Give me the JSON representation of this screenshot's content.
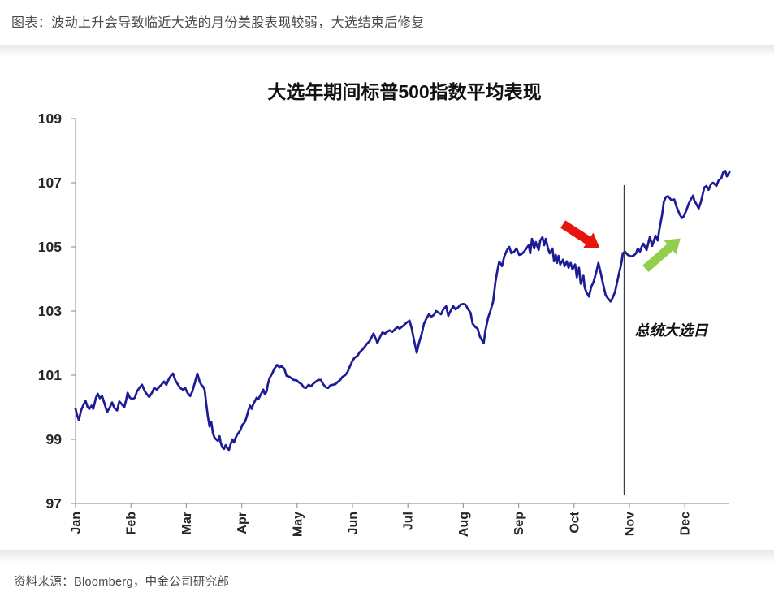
{
  "page": {
    "caption": "图表：波动上升会导致临近大选的月份美股表现较弱，大选结束后修复",
    "source": "资料来源：Bloomberg，中金公司研究部"
  },
  "chart_data": {
    "type": "line",
    "title": "大选年期间标普500指数平均表现",
    "xlabel": "",
    "ylabel": "",
    "ylim": [
      97,
      109
    ],
    "yticks": [
      97,
      99,
      101,
      103,
      105,
      107,
      109
    ],
    "xtick_labels": [
      "Jan",
      "Feb",
      "Mar",
      "Apr",
      "May",
      "Jun",
      "Jul",
      "Aug",
      "Sep",
      "Oct",
      "Nov",
      "Dec"
    ],
    "grid": false,
    "event_line": {
      "x": 9.905,
      "label": "总统大选日"
    },
    "arrows": [
      {
        "name": "pre-election-pullback",
        "color": "#e8150d",
        "x": 8.8,
        "y": 105.71,
        "angle": 33,
        "length": 54
      },
      {
        "name": "post-election-recovery",
        "color": "#90ce4c",
        "x": 10.29,
        "y": 104.32,
        "angle": -41,
        "length": 57
      }
    ],
    "series": [
      {
        "name": "大选年标普500指数平均表现",
        "color": "#1e1b96",
        "points": [
          [
            0,
            99.95
          ],
          [
            0.03,
            99.75
          ],
          [
            0.06,
            99.6
          ],
          [
            0.1,
            99.9
          ],
          [
            0.15,
            100.1
          ],
          [
            0.18,
            100.2
          ],
          [
            0.22,
            100
          ],
          [
            0.25,
            99.95
          ],
          [
            0.29,
            100.05
          ],
          [
            0.32,
            99.95
          ],
          [
            0.37,
            100.3
          ],
          [
            0.4,
            100.42
          ],
          [
            0.44,
            100.28
          ],
          [
            0.48,
            100.35
          ],
          [
            0.53,
            100.08
          ],
          [
            0.57,
            99.85
          ],
          [
            0.62,
            100
          ],
          [
            0.66,
            100.15
          ],
          [
            0.7,
            99.98
          ],
          [
            0.75,
            99.9
          ],
          [
            0.79,
            100.18
          ],
          [
            0.84,
            100.08
          ],
          [
            0.88,
            100
          ],
          [
            0.91,
            100.2
          ],
          [
            0.94,
            100.45
          ],
          [
            0.98,
            100.3
          ],
          [
            1.03,
            100.25
          ],
          [
            1.07,
            100.3
          ],
          [
            1.11,
            100.5
          ],
          [
            1.16,
            100.62
          ],
          [
            1.2,
            100.7
          ],
          [
            1.25,
            100.5
          ],
          [
            1.29,
            100.4
          ],
          [
            1.33,
            100.32
          ],
          [
            1.38,
            100.45
          ],
          [
            1.42,
            100.6
          ],
          [
            1.47,
            100.55
          ],
          [
            1.51,
            100.63
          ],
          [
            1.55,
            100.7
          ],
          [
            1.6,
            100.8
          ],
          [
            1.64,
            100.7
          ],
          [
            1.69,
            100.9
          ],
          [
            1.73,
            101
          ],
          [
            1.76,
            101.05
          ],
          [
            1.8,
            100.85
          ],
          [
            1.85,
            100.7
          ],
          [
            1.89,
            100.6
          ],
          [
            1.94,
            100.55
          ],
          [
            1.98,
            100.6
          ],
          [
            2.02,
            100.45
          ],
          [
            2.07,
            100.35
          ],
          [
            2.11,
            100.5
          ],
          [
            2.16,
            100.8
          ],
          [
            2.2,
            101.05
          ],
          [
            2.24,
            100.8
          ],
          [
            2.27,
            100.7
          ],
          [
            2.3,
            100.65
          ],
          [
            2.33,
            100.55
          ],
          [
            2.36,
            100.1
          ],
          [
            2.39,
            99.7
          ],
          [
            2.42,
            99.4
          ],
          [
            2.45,
            99.55
          ],
          [
            2.48,
            99.2
          ],
          [
            2.51,
            99.05
          ],
          [
            2.54,
            99
          ],
          [
            2.57,
            98.95
          ],
          [
            2.6,
            99.1
          ],
          [
            2.62,
            98.9
          ],
          [
            2.65,
            98.75
          ],
          [
            2.68,
            98.7
          ],
          [
            2.71,
            98.82
          ],
          [
            2.74,
            98.72
          ],
          [
            2.77,
            98.67
          ],
          [
            2.8,
            98.85
          ],
          [
            2.83,
            99
          ],
          [
            2.86,
            98.9
          ],
          [
            2.89,
            99.05
          ],
          [
            2.92,
            99.15
          ],
          [
            2.95,
            99.22
          ],
          [
            2.98,
            99.3
          ],
          [
            3.01,
            99.45
          ],
          [
            3.04,
            99.5
          ],
          [
            3.06,
            99.55
          ],
          [
            3.09,
            99.7
          ],
          [
            3.12,
            99.9
          ],
          [
            3.15,
            100.05
          ],
          [
            3.18,
            99.95
          ],
          [
            3.21,
            100.1
          ],
          [
            3.24,
            100.2
          ],
          [
            3.27,
            100.3
          ],
          [
            3.3,
            100.25
          ],
          [
            3.33,
            100.35
          ],
          [
            3.36,
            100.45
          ],
          [
            3.39,
            100.55
          ],
          [
            3.42,
            100.4
          ],
          [
            3.45,
            100.5
          ],
          [
            3.47,
            100.7
          ],
          [
            3.5,
            100.9
          ],
          [
            3.55,
            101.05
          ],
          [
            3.59,
            101.2
          ],
          [
            3.64,
            101.32
          ],
          [
            3.68,
            101.25
          ],
          [
            3.72,
            101.28
          ],
          [
            3.77,
            101.2
          ],
          [
            3.81,
            100.98
          ],
          [
            3.86,
            100.95
          ],
          [
            3.9,
            100.9
          ],
          [
            3.94,
            100.85
          ],
          [
            3.99,
            100.84
          ],
          [
            4.03,
            100.78
          ],
          [
            4.08,
            100.72
          ],
          [
            4.12,
            100.62
          ],
          [
            4.16,
            100.6
          ],
          [
            4.21,
            100.7
          ],
          [
            4.25,
            100.65
          ],
          [
            4.3,
            100.75
          ],
          [
            4.34,
            100.8
          ],
          [
            4.38,
            100.85
          ],
          [
            4.43,
            100.85
          ],
          [
            4.47,
            100.72
          ],
          [
            4.52,
            100.62
          ],
          [
            4.56,
            100.6
          ],
          [
            4.6,
            100.68
          ],
          [
            4.65,
            100.7
          ],
          [
            4.69,
            100.72
          ],
          [
            4.74,
            100.8
          ],
          [
            4.78,
            100.85
          ],
          [
            4.82,
            100.95
          ],
          [
            4.87,
            101
          ],
          [
            4.91,
            101.1
          ],
          [
            4.96,
            101.3
          ],
          [
            5,
            101.45
          ],
          [
            5.04,
            101.55
          ],
          [
            5.09,
            101.6
          ],
          [
            5.13,
            101.72
          ],
          [
            5.18,
            101.8
          ],
          [
            5.22,
            101.88
          ],
          [
            5.26,
            101.98
          ],
          [
            5.31,
            102.06
          ],
          [
            5.35,
            102.2
          ],
          [
            5.38,
            102.3
          ],
          [
            5.43,
            102.1
          ],
          [
            5.45,
            102
          ],
          [
            5.5,
            102.2
          ],
          [
            5.54,
            102.33
          ],
          [
            5.59,
            102.3
          ],
          [
            5.63,
            102.36
          ],
          [
            5.67,
            102.4
          ],
          [
            5.72,
            102.35
          ],
          [
            5.76,
            102.42
          ],
          [
            5.81,
            102.5
          ],
          [
            5.85,
            102.45
          ],
          [
            5.9,
            102.52
          ],
          [
            5.94,
            102.58
          ],
          [
            5.98,
            102.64
          ],
          [
            6.03,
            102.7
          ],
          [
            6.07,
            102.45
          ],
          [
            6.11,
            102.1
          ],
          [
            6.16,
            101.7
          ],
          [
            6.2,
            102
          ],
          [
            6.25,
            102.3
          ],
          [
            6.29,
            102.6
          ],
          [
            6.33,
            102.75
          ],
          [
            6.38,
            102.9
          ],
          [
            6.42,
            102.82
          ],
          [
            6.47,
            102.88
          ],
          [
            6.51,
            103
          ],
          [
            6.55,
            102.95
          ],
          [
            6.6,
            102.9
          ],
          [
            6.64,
            103.05
          ],
          [
            6.69,
            103.15
          ],
          [
            6.73,
            102.85
          ],
          [
            6.77,
            103
          ],
          [
            6.82,
            103.15
          ],
          [
            6.86,
            103.05
          ],
          [
            6.91,
            103.12
          ],
          [
            6.95,
            103.2
          ],
          [
            7,
            103.22
          ],
          [
            7.04,
            103.2
          ],
          [
            7.09,
            103.05
          ],
          [
            7.13,
            102.95
          ],
          [
            7.17,
            102.6
          ],
          [
            7.22,
            102.5
          ],
          [
            7.26,
            102.45
          ],
          [
            7.3,
            102.2
          ],
          [
            7.35,
            102.05
          ],
          [
            7.37,
            102
          ],
          [
            7.4,
            102.4
          ],
          [
            7.45,
            102.8
          ],
          [
            7.49,
            103
          ],
          [
            7.54,
            103.3
          ],
          [
            7.58,
            103.9
          ],
          [
            7.62,
            104.3
          ],
          [
            7.65,
            104.54
          ],
          [
            7.7,
            104.4
          ],
          [
            7.74,
            104.7
          ],
          [
            7.79,
            104.9
          ],
          [
            7.83,
            105
          ],
          [
            7.87,
            104.8
          ],
          [
            7.92,
            104.85
          ],
          [
            7.96,
            104.95
          ],
          [
            8.01,
            104.75
          ],
          [
            8.05,
            104.77
          ],
          [
            8.1,
            104.85
          ],
          [
            8.14,
            104.95
          ],
          [
            8.18,
            105.05
          ],
          [
            8.21,
            104.8
          ],
          [
            8.24,
            105.25
          ],
          [
            8.28,
            104.95
          ],
          [
            8.31,
            105.15
          ],
          [
            8.36,
            104.9
          ],
          [
            8.39,
            105.2
          ],
          [
            8.43,
            105.3
          ],
          [
            8.46,
            105.05
          ],
          [
            8.49,
            105.25
          ],
          [
            8.53,
            104.95
          ],
          [
            8.56,
            104.8
          ],
          [
            8.61,
            104.95
          ],
          [
            8.64,
            104.55
          ],
          [
            8.67,
            104.75
          ],
          [
            8.69,
            104.5
          ],
          [
            8.72,
            104.72
          ],
          [
            8.75,
            104.45
          ],
          [
            8.8,
            104.6
          ],
          [
            8.83,
            104.4
          ],
          [
            8.87,
            104.55
          ],
          [
            8.9,
            104.35
          ],
          [
            8.94,
            104.5
          ],
          [
            8.97,
            104.3
          ],
          [
            9.02,
            104.45
          ],
          [
            9.05,
            104.05
          ],
          [
            9.09,
            104.35
          ],
          [
            9.12,
            103.85
          ],
          [
            9.17,
            104.1
          ],
          [
            9.19,
            103.75
          ],
          [
            9.22,
            103.6
          ],
          [
            9.27,
            103.45
          ],
          [
            9.31,
            103.75
          ],
          [
            9.35,
            103.9
          ],
          [
            9.4,
            104.2
          ],
          [
            9.44,
            104.5
          ],
          [
            9.48,
            104.2
          ],
          [
            9.53,
            103.8
          ],
          [
            9.57,
            103.5
          ],
          [
            9.61,
            103.4
          ],
          [
            9.66,
            103.3
          ],
          [
            9.7,
            103.42
          ],
          [
            9.74,
            103.6
          ],
          [
            9.79,
            104
          ],
          [
            9.83,
            104.3
          ],
          [
            9.86,
            104.55
          ],
          [
            9.88,
            104.8
          ],
          [
            9.92,
            104.85
          ],
          [
            9.97,
            104.75
          ],
          [
            10.03,
            104.7
          ],
          [
            10.07,
            104.72
          ],
          [
            10.12,
            104.8
          ],
          [
            10.15,
            104.95
          ],
          [
            10.19,
            104.85
          ],
          [
            10.22,
            105
          ],
          [
            10.25,
            105.1
          ],
          [
            10.31,
            104.9
          ],
          [
            10.37,
            105.32
          ],
          [
            10.41,
            105.03
          ],
          [
            10.47,
            105.35
          ],
          [
            10.51,
            105.2
          ],
          [
            10.54,
            105.53
          ],
          [
            10.59,
            106
          ],
          [
            10.62,
            106.4
          ],
          [
            10.66,
            106.56
          ],
          [
            10.7,
            106.58
          ],
          [
            10.76,
            106.45
          ],
          [
            10.81,
            106.48
          ],
          [
            10.85,
            106.25
          ],
          [
            10.91,
            106
          ],
          [
            10.95,
            105.9
          ],
          [
            10.98,
            105.95
          ],
          [
            11.03,
            106.15
          ],
          [
            11.07,
            106.35
          ],
          [
            11.13,
            106.55
          ],
          [
            11.15,
            106.6
          ],
          [
            11.17,
            106.45
          ],
          [
            11.22,
            106.3
          ],
          [
            11.25,
            106.2
          ],
          [
            11.29,
            106.4
          ],
          [
            11.35,
            106.85
          ],
          [
            11.39,
            106.9
          ],
          [
            11.43,
            106.78
          ],
          [
            11.47,
            106.95
          ],
          [
            11.51,
            107
          ],
          [
            11.57,
            106.9
          ],
          [
            11.61,
            107.07
          ],
          [
            11.66,
            107.15
          ],
          [
            11.69,
            107.32
          ],
          [
            11.73,
            107.37
          ],
          [
            11.76,
            107.2
          ],
          [
            11.79,
            107.28
          ],
          [
            11.81,
            107.35
          ]
        ]
      }
    ]
  }
}
